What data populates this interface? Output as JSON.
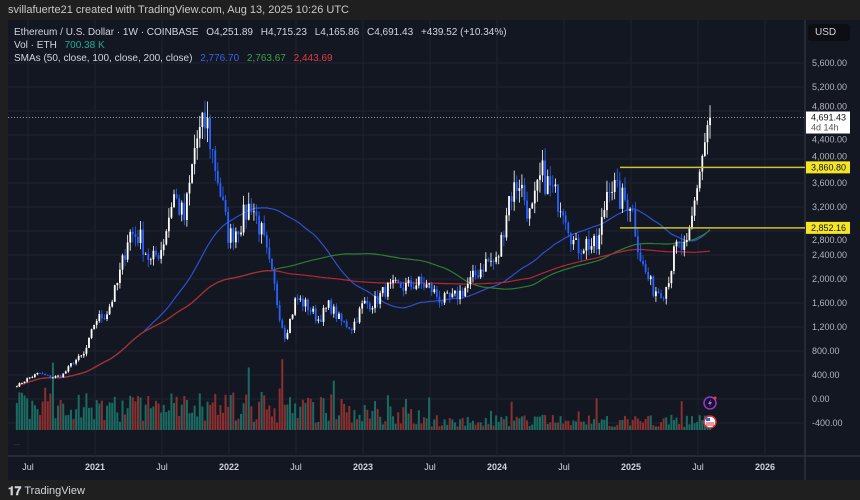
{
  "header": {
    "credit": "svillafuerte21 created with TradingView.com, Aug 13, 2025 10:26 UTC"
  },
  "legend": {
    "symbol": "Ethereum / U.S. Dollar · 1W · COINBASE",
    "open": "O4,251.89",
    "high": "H4,715.23",
    "low": "L4,165.86",
    "close": "C4,691.43",
    "change": "+439.52 (+10.34%)",
    "vol_label": "Vol · ETH",
    "vol_value": "700.38 K",
    "sma_label": "SMAs (50, close, 100, close, 200, close)",
    "sma50": "2,776.70",
    "sma100": "2,763.67",
    "sma200": "2,443.69"
  },
  "currency": "USD",
  "footer": {
    "brand": "TradingView"
  },
  "colors": {
    "bg": "#131722",
    "up": "#ffffff",
    "down": "#2962ff",
    "sma50": "#2f4fd1",
    "sma100": "#2e7d32",
    "sma200": "#b22833",
    "vol_up": "#1b6b63",
    "vol_down": "#8a3030",
    "level": "#c9c23a",
    "level_label": "#f5e625"
  },
  "chart_data": {
    "type": "candlestick",
    "interval": "1W",
    "price_ticks": [
      5600,
      5200,
      4800,
      4400,
      4000,
      3600,
      3200,
      2800,
      2400,
      2000,
      1600,
      1200,
      800,
      400,
      0,
      -400
    ],
    "price_tick_labels": [
      "5,600.00",
      "5,200.00",
      "4,800.00",
      "4,400.00",
      "4,000.00",
      "3,600.00",
      "3,200.00",
      "2,800.00",
      "2,400.00",
      "2,000.00",
      "1,600.00",
      "1,200.00",
      "800.00",
      "400.00",
      "0.00",
      "-400.00"
    ],
    "time_ticks": [
      {
        "label": "Jul",
        "date": "2020-07"
      },
      {
        "label": "2021",
        "date": "2021-01"
      },
      {
        "label": "Jul",
        "date": "2021-07"
      },
      {
        "label": "2022",
        "date": "2022-01"
      },
      {
        "label": "Jul",
        "date": "2022-07"
      },
      {
        "label": "2023",
        "date": "2023-01"
      },
      {
        "label": "Jul",
        "date": "2023-07"
      },
      {
        "label": "2024",
        "date": "2024-01"
      },
      {
        "label": "Jul",
        "date": "2024-07"
      },
      {
        "label": "2025",
        "date": "2025-01"
      },
      {
        "label": "Jul",
        "date": "2025-07"
      },
      {
        "label": "2026",
        "date": "2026-01"
      }
    ],
    "monthly_close_approx": {
      "start": "2020-06",
      "values": [
        226,
        345,
        435,
        360,
        386,
        615,
        737,
        1314,
        1418,
        1918,
        2773,
        2706,
        2275,
        2536,
        3433,
        3001,
        4288,
        4631,
        3683,
        2688,
        2922,
        3282,
        2730,
        1942,
        1067,
        1679,
        1554,
        1328,
        1572,
        1295,
        1196,
        1585,
        1605,
        1822,
        1870,
        1874,
        1934,
        1857,
        1645,
        1671,
        1815,
        2051,
        2282,
        2283,
        3340,
        3647,
        3015,
        3762,
        3436,
        3232,
        2513,
        2602,
        2518,
        3705,
        3332,
        3300,
        2237,
        1822,
        1794,
        2530,
        2486,
        3700,
        4691
      ]
    },
    "last_price": {
      "value": 4691.43,
      "label": "4,691.43",
      "countdown": "4d 14h"
    },
    "levels": [
      {
        "value": 3860.8,
        "label": "3,860.80"
      },
      {
        "value": 2852.16,
        "label": "2,852.16"
      }
    ],
    "sma_periods": [
      50,
      100,
      200
    ]
  }
}
